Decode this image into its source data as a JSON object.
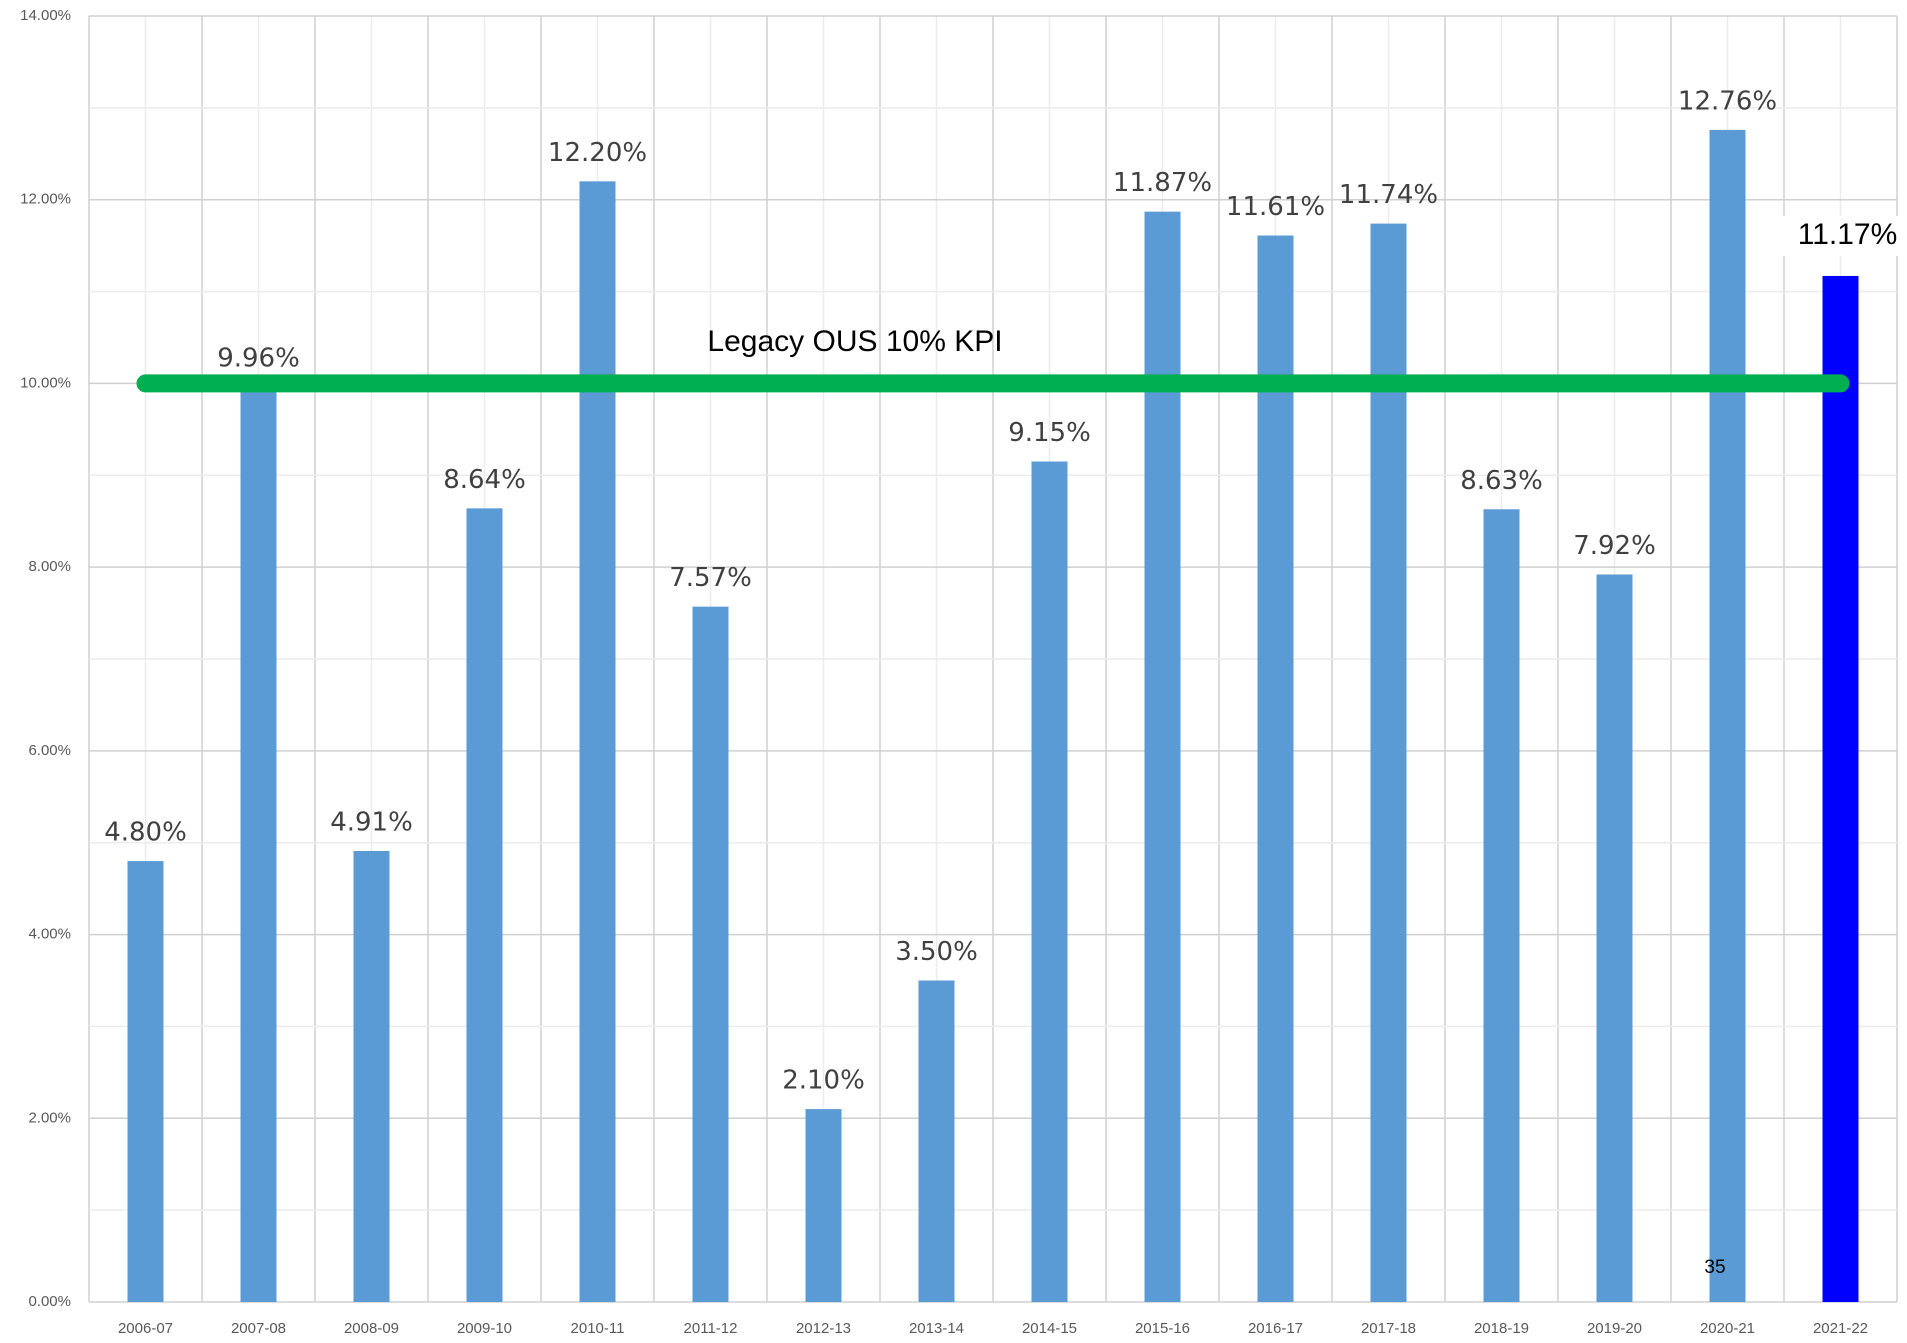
{
  "chart_data": {
    "type": "bar",
    "categories": [
      "2006-07",
      "2007-08",
      "2008-09",
      "2009-10",
      "2010-11",
      "2011-12",
      "2012-13",
      "2013-14",
      "2014-15",
      "2015-16",
      "2016-17",
      "2017-18",
      "2018-19",
      "2019-20",
      "2020-21",
      "2021-22"
    ],
    "values": [
      4.8,
      9.96,
      4.91,
      8.64,
      12.2,
      7.57,
      2.1,
      3.5,
      9.15,
      11.87,
      11.61,
      11.74,
      8.63,
      7.92,
      12.76,
      11.17
    ],
    "value_labels": [
      "4.80%",
      "9.96%",
      "4.91%",
      "8.64%",
      "12.20%",
      "7.57%",
      "2.10%",
      "3.50%",
      "9.15%",
      "11.87%",
      "11.61%",
      "11.74%",
      "8.63%",
      "7.92%",
      "12.76%",
      "11.17%"
    ],
    "colors": [
      "#5b9bd5",
      "#5b9bd5",
      "#5b9bd5",
      "#5b9bd5",
      "#5b9bd5",
      "#5b9bd5",
      "#5b9bd5",
      "#5b9bd5",
      "#5b9bd5",
      "#5b9bd5",
      "#5b9bd5",
      "#5b9bd5",
      "#5b9bd5",
      "#5b9bd5",
      "#5b9bd5",
      "#0000ff"
    ],
    "ylim": [
      0,
      14
    ],
    "yticks": [
      {
        "value": 0,
        "label": "0.00%"
      },
      {
        "value": 2,
        "label": "2.00%"
      },
      {
        "value": 4,
        "label": "4.00%"
      },
      {
        "value": 6,
        "label": "6.00%"
      },
      {
        "value": 8,
        "label": "8.00%"
      },
      {
        "value": 10,
        "label": "10.00%"
      },
      {
        "value": 12,
        "label": "12.00%"
      },
      {
        "value": 14,
        "label": "14.00%"
      }
    ],
    "grid": true,
    "reference_line": {
      "value": 10,
      "label": "Legacy OUS 10% KPI",
      "color": "#00b050"
    },
    "page_number": "35"
  }
}
